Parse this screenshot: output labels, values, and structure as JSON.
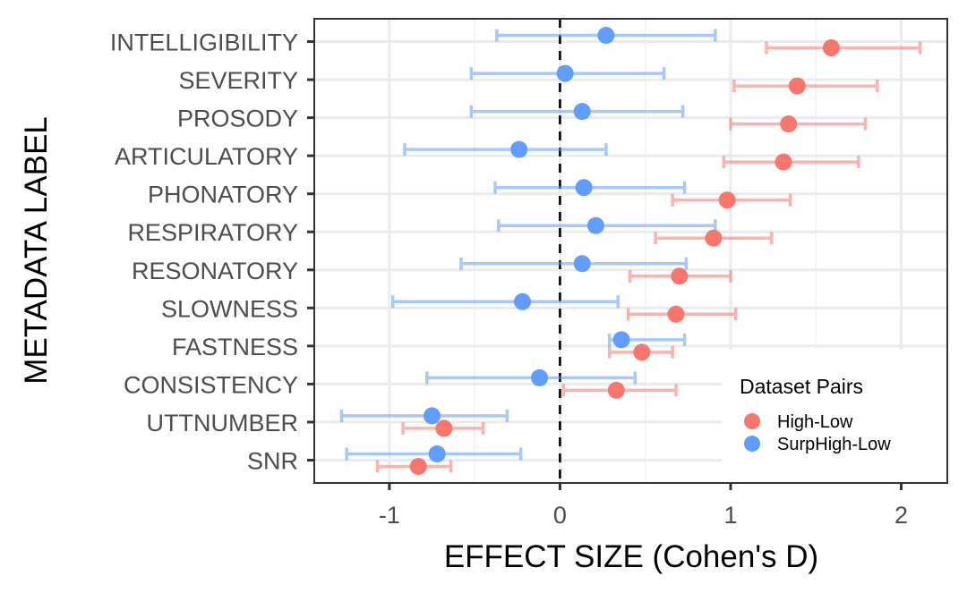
{
  "chart_data": {
    "type": "scatter",
    "subtype": "forest-plot-with-error-bars",
    "title": "",
    "xlabel": "EFFECT SIZE (Cohen's D)",
    "ylabel": "METADATA LABEL",
    "xlim": [
      -1.44,
      2.27
    ],
    "xticks": [
      -1,
      0,
      1,
      2
    ],
    "xtick_labels": [
      "-1",
      "0",
      "1",
      "2"
    ],
    "reference_line": {
      "x": 0,
      "style": "dashed",
      "color": "#000000"
    },
    "grid": true,
    "legend": {
      "title": "Dataset Pairs",
      "placement": "bottom-right-inside"
    },
    "categories": [
      "INTELLIGIBILITY",
      "SEVERITY",
      "PROSODY",
      "ARTICULATORY",
      "PHONATORY",
      "RESPIRATORY",
      "RESONATORY",
      "SLOWNESS",
      "FASTNESS",
      "CONSISTENCY",
      "UTTNUMBER",
      "SNR"
    ],
    "series": [
      {
        "name": "High-Low",
        "color": "#F8766D",
        "values": [
          1.59,
          1.39,
          1.34,
          1.31,
          0.98,
          0.9,
          0.7,
          0.68,
          0.48,
          0.33,
          -0.68,
          -0.83
        ],
        "ci_low": [
          1.21,
          1.02,
          1.0,
          0.96,
          0.66,
          0.56,
          0.41,
          0.4,
          0.29,
          0.02,
          -0.92,
          -1.07
        ],
        "ci_high": [
          2.11,
          1.86,
          1.79,
          1.75,
          1.35,
          1.24,
          1.0,
          1.03,
          0.66,
          0.68,
          -0.45,
          -0.64
        ]
      },
      {
        "name": "SurpHigh-Low",
        "color": "#619CFF",
        "values": [
          0.27,
          0.03,
          0.13,
          -0.24,
          0.14,
          0.21,
          0.13,
          -0.22,
          0.36,
          -0.12,
          -0.75,
          -0.72
        ],
        "ci_low": [
          -0.37,
          -0.52,
          -0.52,
          -0.91,
          -0.38,
          -0.36,
          -0.58,
          -0.98,
          0.29,
          -0.78,
          -1.28,
          -1.25
        ],
        "ci_high": [
          0.91,
          0.61,
          0.72,
          0.27,
          0.73,
          0.91,
          0.74,
          0.34,
          0.73,
          0.44,
          -0.31,
          -0.23
        ]
      }
    ]
  }
}
